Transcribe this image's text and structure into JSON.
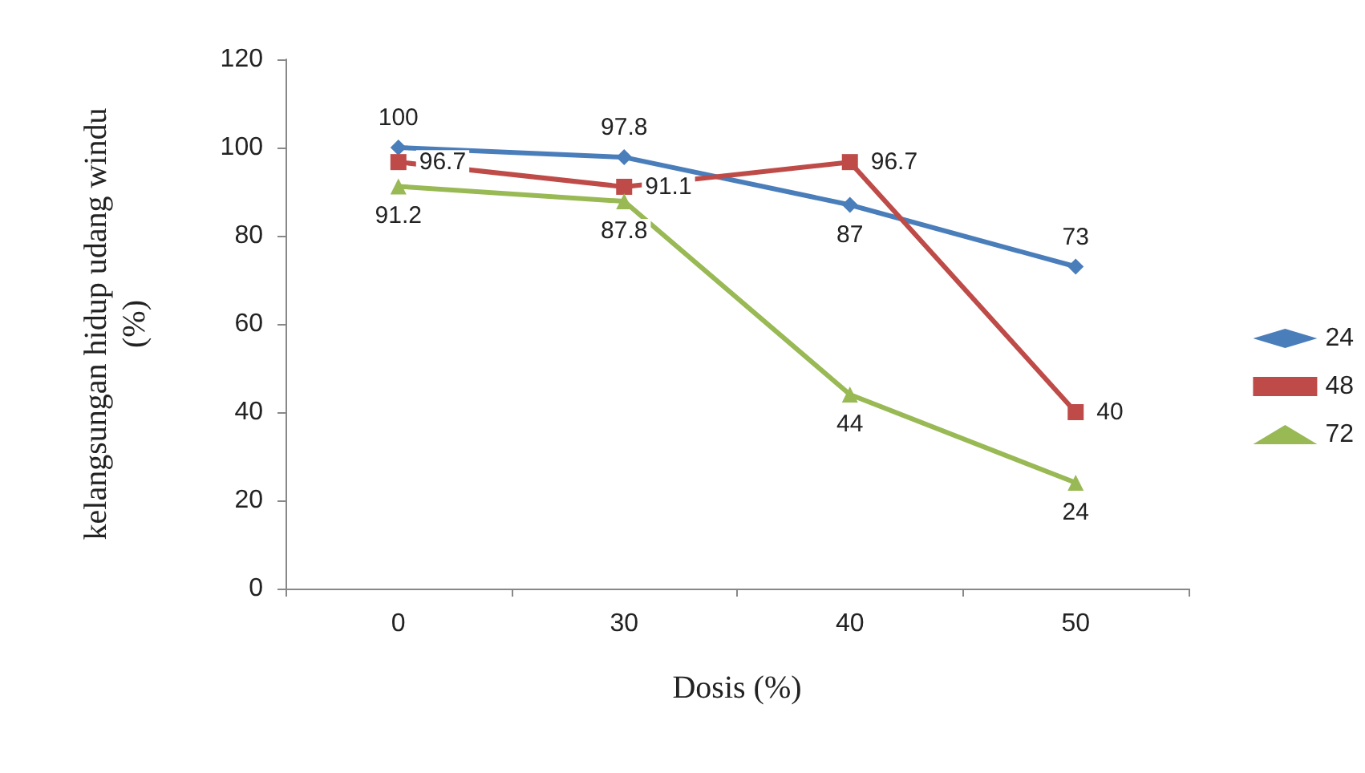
{
  "chart_data": {
    "type": "line",
    "xlabel": "Dosis (%)",
    "ylabel": "kelangsungan hidup udang windu (%)",
    "categories": [
      "0",
      "30",
      "40",
      "50"
    ],
    "ylim": [
      0,
      120
    ],
    "yticks": [
      0,
      20,
      40,
      60,
      80,
      100,
      120
    ],
    "grid": false,
    "legend": "right",
    "data_labels": true,
    "series": [
      {
        "name": "24",
        "color": "#4a7ebb",
        "marker": "diamond",
        "values": [
          100,
          97.8,
          87,
          73
        ]
      },
      {
        "name": "48",
        "color": "#be4b48",
        "marker": "square",
        "values": [
          96.7,
          91.1,
          96.7,
          40
        ]
      },
      {
        "name": "72",
        "color": "#98b954",
        "marker": "triangle",
        "values": [
          91.2,
          87.8,
          44,
          24
        ]
      }
    ]
  }
}
